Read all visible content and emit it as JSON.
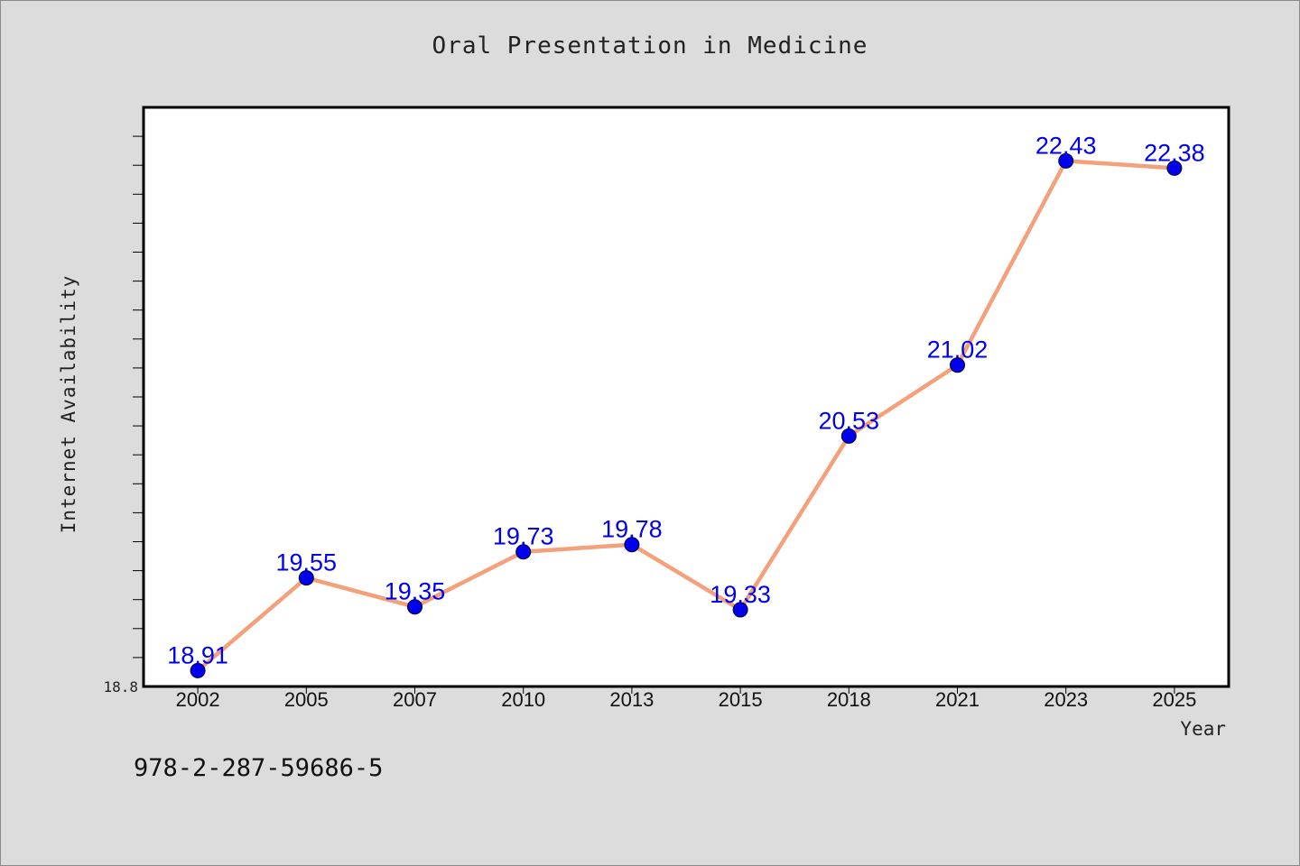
{
  "chart_data": {
    "type": "line",
    "title": "Oral Presentation in Medicine",
    "xlabel": "Year",
    "ylabel": "Internet Availability",
    "categories": [
      "2002",
      "2005",
      "2007",
      "2010",
      "2013",
      "2015",
      "2018",
      "2021",
      "2023",
      "2025"
    ],
    "series": [
      {
        "values": [
          18.91,
          19.55,
          19.35,
          19.73,
          19.78,
          19.33,
          20.53,
          21.02,
          22.43,
          22.38
        ],
        "color": "#f4a07a",
        "marker_color": "#0000ee"
      }
    ],
    "ylim": [
      18.8,
      22.8
    ],
    "y_tick_labels": [
      "18.8"
    ],
    "data_label_color": "#0000ee",
    "grid": false,
    "legend": "none"
  },
  "footer": {
    "id_text": "978-2-287-59686-5"
  }
}
